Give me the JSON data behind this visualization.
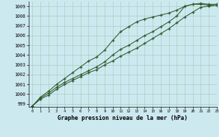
{
  "xlabel": "Graphe pression niveau de la mer (hPa)",
  "xlim": [
    -0.5,
    23
  ],
  "ylim": [
    998.7,
    1009.5
  ],
  "yticks": [
    999,
    1000,
    1001,
    1002,
    1003,
    1004,
    1005,
    1006,
    1007,
    1008,
    1009
  ],
  "xticks": [
    0,
    1,
    2,
    3,
    4,
    5,
    6,
    7,
    8,
    9,
    10,
    11,
    12,
    13,
    14,
    15,
    16,
    17,
    18,
    19,
    20,
    21,
    22,
    23
  ],
  "background_color": "#cde9f0",
  "plot_bg_color": "#cde9f0",
  "grid_color": "#a8ccbb",
  "line_color": "#2d5a2d",
  "line1_y": [
    998.8,
    999.7,
    1000.3,
    1001.0,
    1001.6,
    1002.2,
    1002.8,
    1003.4,
    1003.8,
    1004.5,
    1005.5,
    1006.4,
    1006.9,
    1007.4,
    1007.7,
    1007.9,
    1008.1,
    1008.3,
    1008.6,
    1009.0,
    1009.2,
    1009.2,
    1009.1,
    1009.2
  ],
  "line2_y": [
    998.8,
    999.6,
    1000.1,
    1000.7,
    1001.2,
    1001.6,
    1002.0,
    1002.4,
    1002.8,
    1003.3,
    1004.0,
    1004.6,
    1005.0,
    1005.5,
    1006.0,
    1006.4,
    1006.9,
    1007.4,
    1008.0,
    1009.0,
    1009.2,
    1009.3,
    1009.2,
    1009.2
  ],
  "line3_y": [
    998.8,
    999.5,
    999.9,
    1000.5,
    1001.0,
    1001.4,
    1001.8,
    1002.2,
    1002.5,
    1003.0,
    1003.4,
    1003.9,
    1004.3,
    1004.7,
    1005.2,
    1005.7,
    1006.2,
    1006.7,
    1007.3,
    1007.9,
    1008.4,
    1008.9,
    1009.0,
    1009.1
  ]
}
